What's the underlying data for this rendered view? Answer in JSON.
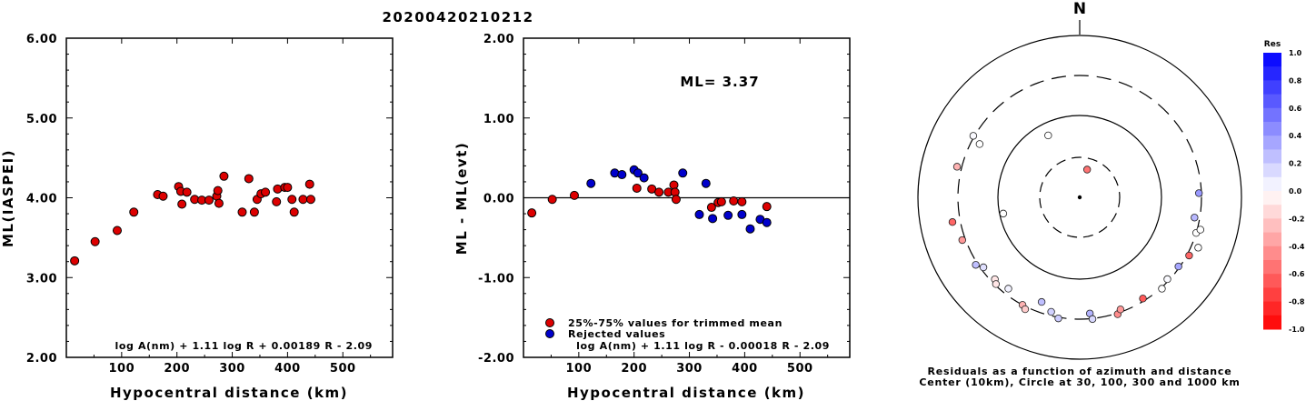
{
  "figure_title": "20200420210212",
  "chart_data": [
    {
      "type": "scatter",
      "title": "",
      "xlabel": "Hypocentral distance (km)",
      "ylabel": "ML(IASPEI)",
      "xlim": [
        0,
        590
      ],
      "ylim": [
        2.0,
        6.0
      ],
      "x_ticks": [
        "100",
        "200",
        "300",
        "400",
        "500"
      ],
      "y_ticks": [
        "2.00",
        "3.00",
        "4.00",
        "5.00",
        "6.00"
      ],
      "formula": "log A(nm) + 1.11 log R + 0.00189 R - 2.09",
      "series": [
        {
          "color": "#dd0000",
          "x": [
            15,
            52,
            92,
            122,
            165,
            175,
            203,
            207,
            209,
            218,
            232,
            245,
            258,
            272,
            274,
            276,
            285,
            318,
            330,
            340,
            345,
            352,
            360,
            380,
            382,
            395,
            400,
            408,
            412,
            428,
            440,
            442
          ],
          "y": [
            3.21,
            3.45,
            3.59,
            3.82,
            4.04,
            4.02,
            4.14,
            4.08,
            3.92,
            4.07,
            3.98,
            3.97,
            3.97,
            4.02,
            4.09,
            3.93,
            4.27,
            3.82,
            4.24,
            3.82,
            3.98,
            4.05,
            4.07,
            3.95,
            4.11,
            4.13,
            4.13,
            3.98,
            3.82,
            3.98,
            4.17,
            3.98
          ]
        }
      ]
    },
    {
      "type": "scatter",
      "title": "",
      "xlabel": "Hypocentral distance (km)",
      "ylabel": "ML - ML(evt)",
      "xlim": [
        0,
        590
      ],
      "ylim": [
        -2.0,
        2.0
      ],
      "x_ticks": [
        "100",
        "200",
        "300",
        "400",
        "500"
      ],
      "y_ticks": [
        "-2.00",
        "-1.00",
        "0.00",
        "1.00",
        "2.00"
      ],
      "annotation": "ML= 3.37",
      "formula": "log A(nm) + 1.11 log R - 0.00018 R - 2.09",
      "legend": [
        "25%-75% values for trimmed mean",
        "Rejected values"
      ],
      "series": [
        {
          "name": "25%-75% values for trimmed mean",
          "color": "#dd0000",
          "x": [
            15,
            52,
            92,
            205,
            232,
            245,
            262,
            272,
            274,
            276,
            340,
            352,
            358,
            380,
            395,
            440
          ],
          "y": [
            -0.19,
            -0.02,
            0.03,
            0.12,
            0.11,
            0.07,
            0.07,
            0.16,
            0.07,
            -0.02,
            -0.12,
            -0.06,
            -0.05,
            -0.04,
            -0.05,
            -0.11
          ]
        },
        {
          "name": "Rejected values",
          "color": "#0000cc",
          "x": [
            122,
            165,
            178,
            200,
            207,
            218,
            288,
            318,
            330,
            342,
            370,
            395,
            410,
            428,
            440
          ],
          "y": [
            0.18,
            0.31,
            0.29,
            0.35,
            0.31,
            0.25,
            0.31,
            -0.21,
            0.18,
            -0.26,
            -0.22,
            -0.21,
            -0.39,
            -0.27,
            -0.31
          ]
        }
      ]
    },
    {
      "type": "scatter",
      "title": "N",
      "caption": [
        "Residuals as a function of azimuth and distance",
        "Center (10km), Circle at 30, 100, 300 and 1000 km"
      ],
      "colorbar_title": "Res",
      "colorbar_labels": [
        "1.0",
        "0.8",
        "0.6",
        "0.4",
        "0.2",
        "0.0",
        "-0.2",
        "-0.4",
        "-0.6",
        "-0.8",
        "-1.0"
      ],
      "colorbar_range": [
        -1.0,
        1.0
      ],
      "circles_km": [
        30,
        100,
        300,
        1000
      ],
      "points": [
        {
          "az": 15,
          "dist": 22,
          "res": -0.55
        },
        {
          "az": 333,
          "dist": 70,
          "res": 0.0
        },
        {
          "az": 258,
          "dist": 90,
          "res": 0.0
        },
        {
          "az": 300,
          "dist": 310,
          "res": 0.02
        },
        {
          "az": 298,
          "dist": 238,
          "res": 0.0
        },
        {
          "az": 284,
          "dist": 345,
          "res": -0.3
        },
        {
          "az": 259,
          "dist": 380,
          "res": -0.6
        },
        {
          "az": 250,
          "dist": 330,
          "res": -0.4
        },
        {
          "az": 237,
          "dist": 320,
          "res": 0.25
        },
        {
          "az": 234,
          "dist": 278,
          "res": 0.12
        },
        {
          "az": 226,
          "dist": 270,
          "res": -0.1
        },
        {
          "az": 224,
          "dist": 290,
          "res": -0.1
        },
        {
          "az": 218,
          "dist": 255,
          "res": 0.05
        },
        {
          "az": 208,
          "dist": 300,
          "res": -0.3
        },
        {
          "az": 206,
          "dist": 325,
          "res": -0.2
        },
        {
          "az": 200,
          "dist": 225,
          "res": 0.25
        },
        {
          "az": 194,
          "dist": 270,
          "res": 0.18
        },
        {
          "az": 190,
          "dist": 310,
          "res": 0.2
        },
        {
          "az": 175,
          "dist": 260,
          "res": 0.3
        },
        {
          "az": 174,
          "dist": 305,
          "res": 0.15
        },
        {
          "az": 162,
          "dist": 310,
          "res": -0.45
        },
        {
          "az": 160,
          "dist": 280,
          "res": -0.4
        },
        {
          "az": 148,
          "dist": 280,
          "res": -0.65
        },
        {
          "az": 138,
          "dist": 310,
          "res": 0.0
        },
        {
          "az": 133,
          "dist": 285,
          "res": 0.02
        },
        {
          "az": 125,
          "dist": 290,
          "res": 0.35
        },
        {
          "az": 118,
          "dist": 320,
          "res": -0.6
        },
        {
          "az": 113,
          "dist": 370,
          "res": 0.0
        },
        {
          "az": 107,
          "dist": 300,
          "res": 0.0
        },
        {
          "az": 105,
          "dist": 330,
          "res": 0.0
        },
        {
          "az": 100,
          "dist": 260,
          "res": 0.28
        },
        {
          "az": 88,
          "dist": 280,
          "res": 0.4
        }
      ]
    }
  ]
}
